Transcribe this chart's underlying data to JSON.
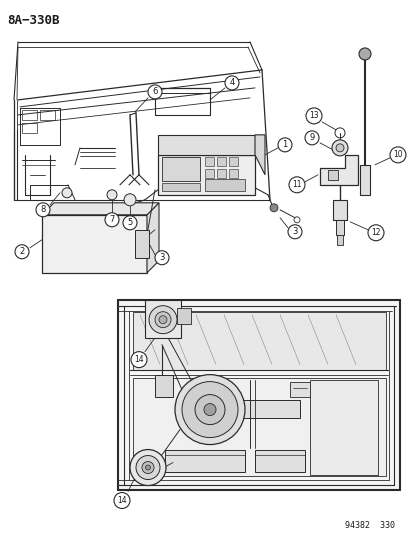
{
  "title": "8A−330B",
  "catalog_number": "94382  330",
  "background_color": "#ffffff",
  "line_color": "#2a2a2a",
  "text_color": "#1a1a1a",
  "figure_width": 4.14,
  "figure_height": 5.33,
  "dpi": 100
}
